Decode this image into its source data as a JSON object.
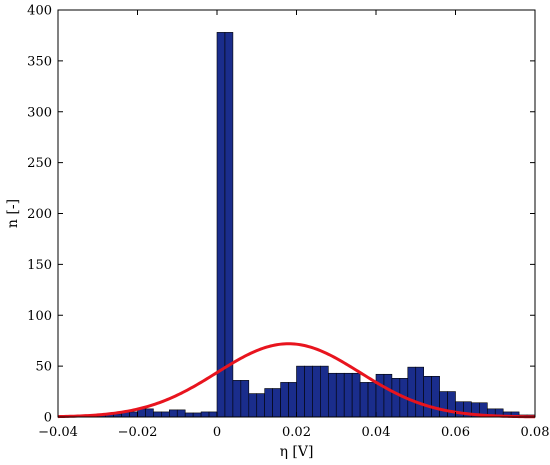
{
  "chart_data": {
    "type": "bar",
    "title": "",
    "xlabel": "η [V]",
    "ylabel": "n [-]",
    "xlim": [
      -0.04,
      0.08
    ],
    "ylim": [
      0,
      400
    ],
    "xticks": [
      -0.04,
      -0.02,
      0,
      0.02,
      0.04,
      0.06,
      0.08
    ],
    "xtick_labels": [
      "−0.04",
      "−0.02",
      "0",
      "0.02",
      "0.04",
      "0.06",
      "0.08"
    ],
    "yticks": [
      0,
      50,
      100,
      150,
      200,
      250,
      300,
      350,
      400
    ],
    "ytick_labels": [
      "0",
      "50",
      "100",
      "150",
      "200",
      "250",
      "300",
      "350",
      "400"
    ],
    "grid": false,
    "legend": "none",
    "bar_color": "#1a2d8c",
    "bar_edge_color": "#000000",
    "curve_color": "#e8141e",
    "histogram": {
      "bin_width": 0.002,
      "bin_starts": [
        -0.04,
        -0.038,
        -0.036,
        -0.034,
        -0.032,
        -0.03,
        -0.028,
        -0.026,
        -0.024,
        -0.022,
        -0.02,
        -0.018,
        -0.016,
        -0.014,
        -0.012,
        -0.01,
        -0.008,
        -0.006,
        -0.004,
        -0.002,
        0.0,
        0.002,
        0.004,
        0.006,
        0.008,
        0.01,
        0.012,
        0.014,
        0.016,
        0.018,
        0.02,
        0.022,
        0.024,
        0.026,
        0.028,
        0.03,
        0.032,
        0.034,
        0.036,
        0.038,
        0.04,
        0.042,
        0.044,
        0.046,
        0.048,
        0.05,
        0.052,
        0.054,
        0.056,
        0.058,
        0.06,
        0.062,
        0.064,
        0.066,
        0.068,
        0.07,
        0.072,
        0.074,
        0.076,
        0.078
      ],
      "counts": [
        1,
        1,
        1,
        1,
        2,
        2,
        3,
        3,
        5,
        5,
        8,
        8,
        5,
        5,
        7,
        7,
        4,
        4,
        5,
        5,
        378,
        378,
        36,
        36,
        23,
        23,
        28,
        28,
        34,
        34,
        50,
        50,
        50,
        50,
        43,
        43,
        43,
        43,
        34,
        34,
        42,
        42,
        38,
        38,
        49,
        49,
        40,
        40,
        25,
        25,
        15,
        15,
        14,
        14,
        8,
        8,
        5,
        5,
        2,
        2
      ]
    },
    "fit_curve": {
      "type": "gaussian",
      "mean": 0.018,
      "sigma": 0.018,
      "peak": 72
    }
  }
}
